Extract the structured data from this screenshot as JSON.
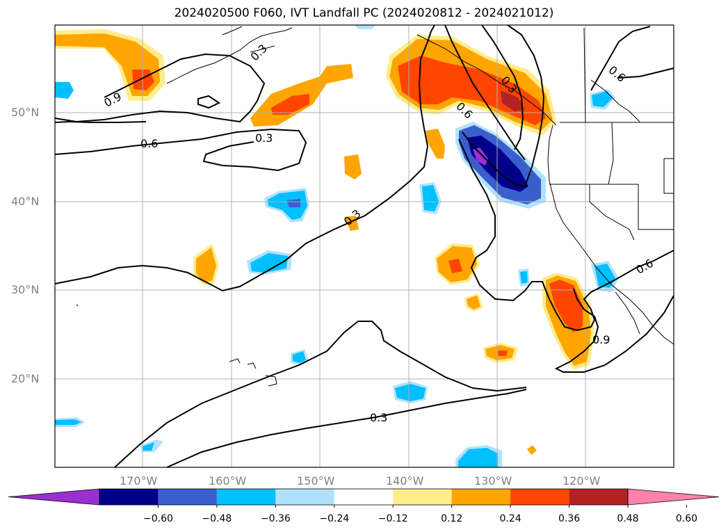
{
  "title": "2024020500 F060, IVT Landfall PC (2024020812 - 2024021012)",
  "lat_ticks": [
    "50°N",
    "40°N",
    "30°N",
    "20°N"
  ],
  "lon_ticks": [
    "170°W",
    "160°W",
    "150°W",
    "140°W",
    "130°W",
    "120°W"
  ],
  "colorbar": {
    "ticks": [
      "−0.60",
      "−0.48",
      "−0.36",
      "−0.24",
      "−0.12",
      "0.12",
      "0.24",
      "0.36",
      "0.48",
      "0.60"
    ],
    "colors": [
      "#9b30d0",
      "#00008b",
      "#3a5fcd",
      "#00bfff",
      "#b0e2ff",
      "#ffffff",
      "#ffec8b",
      "#ffa500",
      "#ff4500",
      "#b22222",
      "#ff82ab"
    ]
  },
  "contour_labels": [
    "0.9",
    "0.6",
    "0.3",
    "0.3",
    "0.6",
    "0.6",
    "0.3",
    "0.6",
    "0.9",
    "0.3",
    "0.3"
  ],
  "colors": {
    "negative_strong": "#00008b",
    "negative_mid": "#3a5fcd",
    "negative_light": "#00bfff",
    "negative_faint": "#b0e2ff",
    "positive_faint": "#ffec8b",
    "positive_light": "#ffa500",
    "positive_mid": "#ff4500",
    "positive_strong": "#b22222",
    "extreme_neg": "#9b30d0",
    "grid": "#b0b0b0"
  }
}
